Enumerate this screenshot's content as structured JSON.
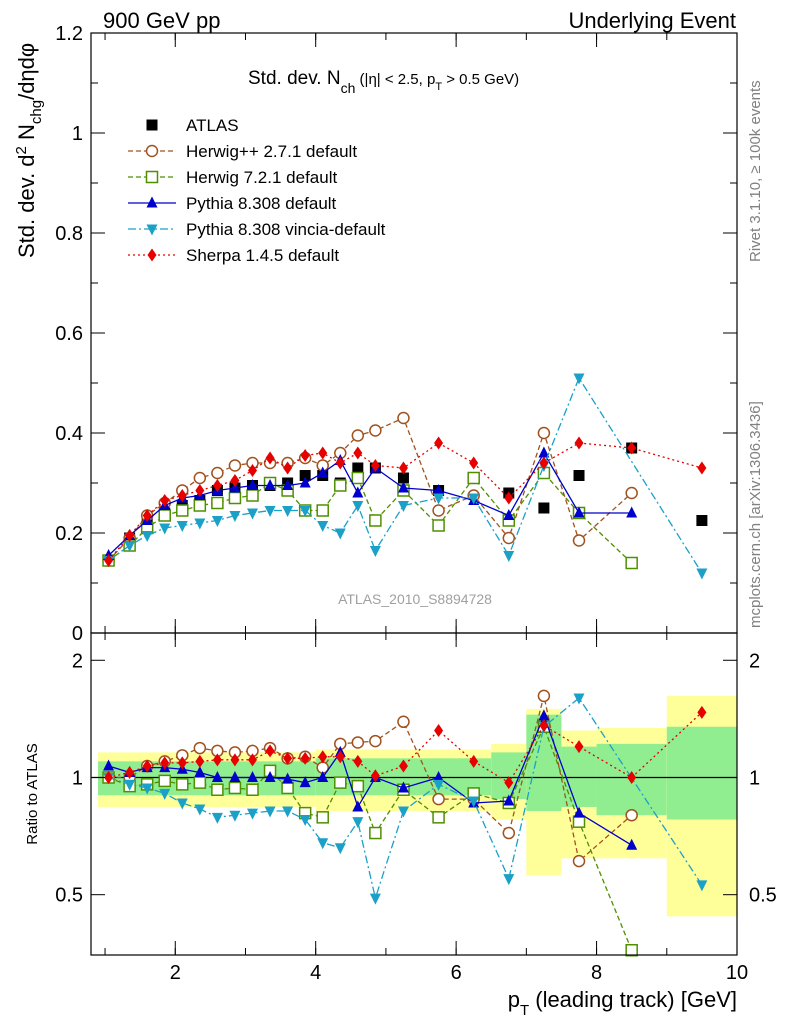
{
  "header": {
    "left": "900 GeV pp",
    "right": "Underlying Event"
  },
  "side_text": {
    "rivet": "Rivet 3.1.10, ≥ 100k events",
    "mcplots": "mcplots.cern.ch [arXiv:1306.3436]"
  },
  "watermark": "ATLAS_2010_S8894728",
  "chart_data": [
    {
      "type": "scatter",
      "title_main": "Std. dev. N",
      "title_sub": "ch",
      "title_rest": " (|η| < 2.5, p",
      "title_sub2": "T",
      "title_end": " > 0.5 GeV)",
      "ylabel": "Std. dev. d² Nₑₕg/dηdφ",
      "ylabel_parts": {
        "a": "Std. dev. d",
        "sup": "2",
        "b": " N",
        "sub": "chg",
        "c": "/dηdφ"
      },
      "xlim": [
        0.8,
        10.0
      ],
      "ylim": [
        0,
        1.2
      ],
      "yticks": [
        {
          "v": 0,
          "label": "0"
        },
        {
          "v": 0.2,
          "label": "0.2"
        },
        {
          "v": 0.4,
          "label": "0.4"
        },
        {
          "v": 0.6,
          "label": "0.6"
        },
        {
          "v": 0.8,
          "label": "0.8"
        },
        {
          "v": 1.0,
          "label": "1"
        },
        {
          "v": 1.2,
          "label": "1.2"
        }
      ],
      "legend_position": "top-left",
      "series": [
        {
          "name": "ATLAS",
          "color": "#000000",
          "marker": "square-filled",
          "line": "none",
          "x": [
            1.05,
            1.35,
            1.6,
            1.85,
            2.1,
            2.35,
            2.6,
            2.85,
            3.1,
            3.35,
            3.6,
            3.85,
            4.1,
            4.35,
            4.6,
            4.85,
            5.25,
            5.75,
            6.25,
            6.75,
            7.25,
            7.75,
            8.5,
            9.5
          ],
          "y": [
            0.145,
            0.19,
            0.22,
            0.24,
            0.255,
            0.265,
            0.285,
            0.29,
            0.295,
            0.295,
            0.3,
            0.315,
            0.315,
            0.3,
            0.33,
            0.33,
            0.31,
            0.285,
            0.31,
            0.28,
            0.25,
            0.315,
            0.37,
            0.225
          ]
        },
        {
          "name": "Herwig++ 2.7.1 default",
          "color": "#a0521e",
          "marker": "circle-open",
          "line": "dashed",
          "x": [
            1.05,
            1.35,
            1.6,
            1.85,
            2.1,
            2.35,
            2.6,
            2.85,
            3.1,
            3.35,
            3.6,
            3.85,
            4.1,
            4.35,
            4.6,
            4.85,
            5.25,
            5.75,
            6.25,
            6.75,
            7.25,
            7.75,
            8.5
          ],
          "y": [
            0.145,
            0.19,
            0.235,
            0.26,
            0.285,
            0.31,
            0.32,
            0.335,
            0.34,
            0.34,
            0.34,
            0.35,
            0.335,
            0.36,
            0.395,
            0.405,
            0.43,
            0.245,
            0.275,
            0.19,
            0.4,
            0.185,
            0.28
          ]
        },
        {
          "name": "Herwig 7.2.1 default",
          "color": "#4f8f00",
          "marker": "square-open",
          "line": "dashed",
          "x": [
            1.05,
            1.35,
            1.6,
            1.85,
            2.1,
            2.35,
            2.6,
            2.85,
            3.1,
            3.35,
            3.6,
            3.85,
            4.1,
            4.35,
            4.6,
            4.85,
            5.25,
            5.75,
            6.25,
            6.75,
            7.25,
            7.75,
            8.5
          ],
          "y": [
            0.145,
            0.175,
            0.21,
            0.235,
            0.245,
            0.255,
            0.26,
            0.27,
            0.275,
            0.3,
            0.285,
            0.245,
            0.245,
            0.295,
            0.31,
            0.225,
            0.285,
            0.215,
            0.31,
            0.225,
            0.32,
            0.24,
            0.14
          ]
        },
        {
          "name": "Pythia 8.308 default",
          "color": "#0000cc",
          "marker": "triangle-up-filled",
          "line": "solid",
          "x": [
            1.05,
            1.35,
            1.6,
            1.85,
            2.1,
            2.35,
            2.6,
            2.85,
            3.1,
            3.35,
            3.6,
            3.85,
            4.1,
            4.35,
            4.6,
            4.85,
            5.25,
            5.75,
            6.25,
            6.75,
            7.25,
            7.75,
            8.5
          ],
          "y": [
            0.155,
            0.195,
            0.225,
            0.255,
            0.27,
            0.275,
            0.285,
            0.29,
            0.295,
            0.295,
            0.295,
            0.3,
            0.32,
            0.345,
            0.28,
            0.33,
            0.29,
            0.285,
            0.265,
            0.235,
            0.36,
            0.24,
            0.24
          ]
        },
        {
          "name": "Pythia 8.308 vincia-default",
          "color": "#1ba0c8",
          "marker": "triangle-down-filled",
          "line": "dashdot",
          "x": [
            1.05,
            1.35,
            1.6,
            1.85,
            2.1,
            2.35,
            2.6,
            2.85,
            3.1,
            3.35,
            3.6,
            3.85,
            4.1,
            4.35,
            4.6,
            4.85,
            5.25,
            5.75,
            6.25,
            6.75,
            7.25,
            7.75,
            9.5
          ],
          "y": [
            0.145,
            0.175,
            0.195,
            0.21,
            0.215,
            0.22,
            0.225,
            0.235,
            0.24,
            0.245,
            0.245,
            0.245,
            0.215,
            0.2,
            0.255,
            0.165,
            0.255,
            0.27,
            0.27,
            0.155,
            0.335,
            0.51,
            0.12
          ]
        },
        {
          "name": "Sherpa 1.4.5 default",
          "color": "#e60000",
          "marker": "diamond-filled",
          "line": "dotted",
          "x": [
            1.05,
            1.35,
            1.6,
            1.85,
            2.1,
            2.35,
            2.6,
            2.85,
            3.1,
            3.35,
            3.6,
            3.85,
            4.1,
            4.35,
            4.6,
            4.85,
            5.25,
            5.75,
            6.25,
            6.75,
            7.25,
            7.75,
            8.5,
            9.5
          ],
          "y": [
            0.145,
            0.195,
            0.235,
            0.265,
            0.275,
            0.285,
            0.295,
            0.305,
            0.325,
            0.35,
            0.33,
            0.355,
            0.36,
            0.34,
            0.36,
            0.335,
            0.33,
            0.38,
            0.34,
            0.27,
            0.34,
            0.38,
            0.37,
            0.33
          ]
        }
      ]
    },
    {
      "type": "scatter",
      "ylabel": "Ratio to ATLAS",
      "xlabel_parts": {
        "a": "p",
        "sub": "T",
        "b": " (leading track) [GeV]"
      },
      "xlim": [
        0.8,
        10.0
      ],
      "ylim": [
        0.35,
        2.35
      ],
      "log_y": true,
      "xticks": [
        {
          "v": 2,
          "label": "2"
        },
        {
          "v": 4,
          "label": "4"
        },
        {
          "v": 6,
          "label": "6"
        },
        {
          "v": 8,
          "label": "8"
        },
        {
          "v": 10,
          "label": "10"
        }
      ],
      "yticks": [
        {
          "v": 0.5,
          "label": "0.5"
        },
        {
          "v": 1,
          "label": "1"
        },
        {
          "v": 2,
          "label": "2"
        }
      ],
      "reference_line": 1.0,
      "uncertainty_bands": [
        {
          "lo": 0.9,
          "hi": 1.1,
          "lo2": 0.84,
          "hi2": 1.16,
          "x": [
            0.9,
            4.0
          ]
        },
        {
          "lo": 0.9,
          "hi": 1.12,
          "lo2": 0.82,
          "hi2": 1.18,
          "x": [
            4.0,
            6.5
          ]
        },
        {
          "lo": 0.88,
          "hi": 1.16,
          "lo2": 0.78,
          "hi2": 1.22,
          "x": [
            6.5,
            7.0
          ]
        },
        {
          "lo": 0.82,
          "hi": 1.45,
          "lo2": 0.56,
          "hi2": 1.5,
          "x": [
            7.0,
            7.5
          ]
        },
        {
          "lo": 0.84,
          "hi": 1.2,
          "lo2": 0.62,
          "hi2": 1.32,
          "x": [
            7.5,
            8.0
          ]
        },
        {
          "lo": 0.8,
          "hi": 1.22,
          "lo2": 0.62,
          "hi2": 1.34,
          "x": [
            8.0,
            9.0
          ]
        },
        {
          "lo": 0.78,
          "hi": 1.35,
          "lo2": 0.44,
          "hi2": 1.62,
          "x": [
            9.0,
            10.0
          ]
        }
      ],
      "series": [
        {
          "name": "Herwig++ 2.7.1 default",
          "color": "#a0521e",
          "marker": "circle-open",
          "line": "dashed",
          "x": [
            1.05,
            1.35,
            1.6,
            1.85,
            2.1,
            2.35,
            2.6,
            2.85,
            3.1,
            3.35,
            3.6,
            3.85,
            4.1,
            4.35,
            4.6,
            4.85,
            5.25,
            5.75,
            6.25,
            6.75,
            7.25,
            7.75,
            8.5
          ],
          "y": [
            1.0,
            1.0,
            1.07,
            1.1,
            1.14,
            1.19,
            1.17,
            1.16,
            1.17,
            1.19,
            1.12,
            1.13,
            1.06,
            1.22,
            1.23,
            1.24,
            1.39,
            0.88,
            0.88,
            0.72,
            1.62,
            0.61,
            0.8
          ]
        },
        {
          "name": "Herwig 7.2.1 default",
          "color": "#4f8f00",
          "marker": "square-open",
          "line": "dashed",
          "x": [
            1.05,
            1.35,
            1.6,
            1.85,
            2.1,
            2.35,
            2.6,
            2.85,
            3.1,
            3.35,
            3.6,
            3.85,
            4.1,
            4.35,
            4.6,
            4.85,
            5.25,
            5.75,
            6.25,
            6.75,
            7.25,
            7.75,
            8.5
          ],
          "y": [
            1.0,
            0.95,
            0.96,
            0.98,
            0.96,
            0.97,
            0.93,
            0.94,
            0.93,
            1.04,
            0.94,
            0.81,
            0.79,
            0.97,
            0.95,
            0.72,
            0.93,
            0.79,
            0.91,
            0.86,
            1.35,
            0.77,
            0.36
          ]
        },
        {
          "name": "Pythia 8.308 default",
          "color": "#0000cc",
          "marker": "triangle-up-filled",
          "line": "solid",
          "x": [
            1.05,
            1.35,
            1.6,
            1.85,
            2.1,
            2.35,
            2.6,
            2.85,
            3.1,
            3.35,
            3.6,
            3.85,
            4.1,
            4.35,
            4.6,
            4.85,
            5.25,
            5.75,
            6.25,
            6.75,
            7.25,
            7.75,
            8.5
          ],
          "y": [
            1.07,
            1.03,
            1.06,
            1.06,
            1.05,
            1.03,
            1.0,
            1.0,
            1.0,
            1.0,
            0.99,
            0.97,
            1.0,
            1.16,
            0.84,
            1.0,
            0.94,
            1.0,
            0.86,
            0.87,
            1.44,
            0.81,
            0.67
          ]
        },
        {
          "name": "Pythia 8.308 vincia-default",
          "color": "#1ba0c8",
          "marker": "triangle-down-filled",
          "line": "dashdot",
          "x": [
            1.05,
            1.35,
            1.6,
            1.85,
            2.1,
            2.35,
            2.6,
            2.85,
            3.1,
            3.35,
            3.6,
            3.85,
            4.1,
            4.35,
            4.6,
            4.85,
            5.25,
            5.75,
            6.25,
            6.75,
            7.25,
            7.75,
            9.5
          ],
          "y": [
            1.0,
            0.96,
            0.94,
            0.91,
            0.86,
            0.83,
            0.79,
            0.8,
            0.81,
            0.82,
            0.82,
            0.78,
            0.68,
            0.66,
            0.77,
            0.49,
            0.82,
            0.96,
            0.87,
            0.55,
            1.35,
            1.6,
            0.53
          ]
        },
        {
          "name": "Sherpa 1.4.5 default",
          "color": "#e60000",
          "marker": "diamond-filled",
          "line": "dotted",
          "x": [
            1.05,
            1.35,
            1.6,
            1.85,
            2.1,
            2.35,
            2.6,
            2.85,
            3.1,
            3.35,
            3.6,
            3.85,
            4.1,
            4.35,
            4.6,
            4.85,
            5.25,
            5.75,
            6.25,
            6.75,
            7.25,
            7.75,
            8.5,
            9.5
          ],
          "y": [
            1.0,
            1.03,
            1.07,
            1.09,
            1.09,
            1.1,
            1.11,
            1.11,
            1.11,
            1.17,
            1.12,
            1.12,
            1.13,
            1.13,
            1.1,
            1.01,
            1.07,
            1.32,
            1.1,
            0.97,
            1.36,
            1.2,
            1.0,
            1.47
          ]
        }
      ]
    }
  ]
}
